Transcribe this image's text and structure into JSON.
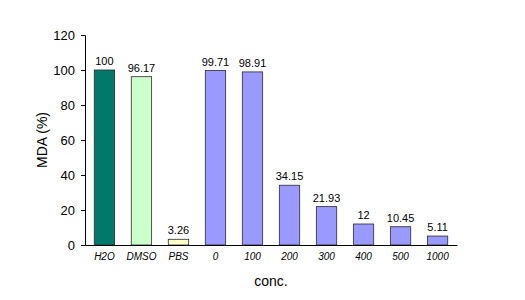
{
  "chart_data": {
    "type": "bar",
    "x_label": "conc.",
    "y_label": "MDA (%)",
    "categories": [
      "H2O",
      "DMSO",
      "PBS",
      "0",
      "100",
      "200",
      "300",
      "400",
      "500",
      "1000"
    ],
    "values": [
      100,
      96.17,
      3.26,
      99.71,
      98.91,
      34.15,
      21.93,
      12,
      10.45,
      5.11
    ],
    "colors": [
      "#00796b",
      "#ccffcc",
      "#ffffcc",
      "#9999ff",
      "#9999ff",
      "#9999ff",
      "#9999ff",
      "#9999ff",
      "#9999ff",
      "#9999ff"
    ],
    "ylim": [
      0,
      120
    ],
    "yticks": [
      0,
      20,
      40,
      60,
      80,
      100,
      120
    ],
    "grid": false,
    "data_labels": true
  }
}
